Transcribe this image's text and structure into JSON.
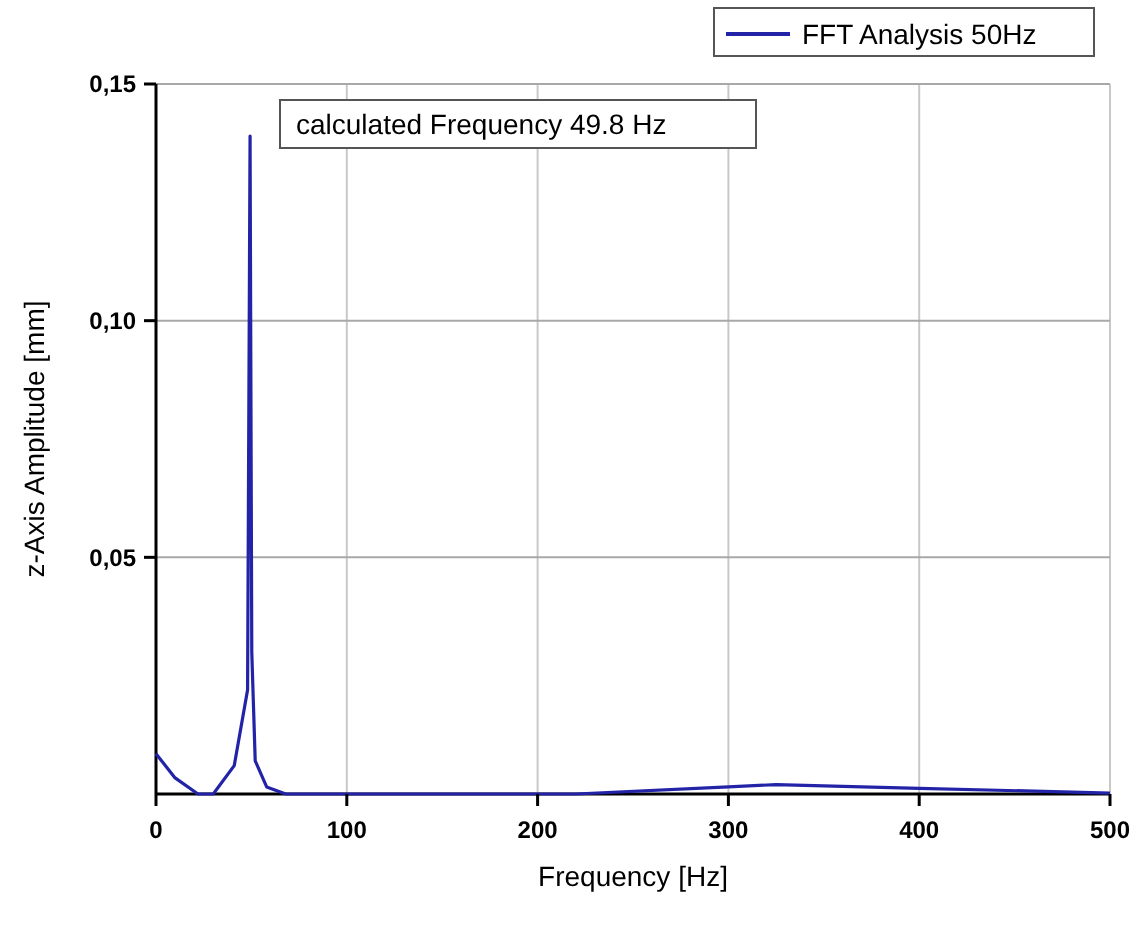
{
  "chart_data": {
    "type": "line",
    "xlabel": "Frequency [Hz]",
    "ylabel": "z-Axis Amplitude [mm]",
    "x": [
      0,
      10,
      22,
      30,
      41,
      48,
      49.3,
      50.2,
      52,
      58,
      68,
      100,
      220,
      300,
      325,
      400,
      500
    ],
    "series": [
      {
        "name": "FFT Analysis 50Hz",
        "color": "#2323a8",
        "values": [
          0.0085,
          0.0034,
          0,
          0,
          0.006,
          0.022,
          0.139,
          0.03,
          0.007,
          0.0015,
          0,
          0,
          0,
          0.0015,
          0.002,
          0.0012,
          0.0002
        ]
      }
    ],
    "annotations": [
      "calculated Frequency 49.8 Hz"
    ],
    "xlim": [
      0,
      500
    ],
    "xticks": [
      0,
      100,
      200,
      300,
      400,
      500
    ],
    "ylim": [
      0,
      0.15
    ],
    "yticks": [
      {
        "value": 0.05,
        "label": "0,05"
      },
      {
        "value": 0.1,
        "label": "0,10"
      },
      {
        "value": 0.15,
        "label": "0,15"
      }
    ],
    "grid": true,
    "legend": "top right",
    "marker": "none",
    "line_style": "solid"
  }
}
